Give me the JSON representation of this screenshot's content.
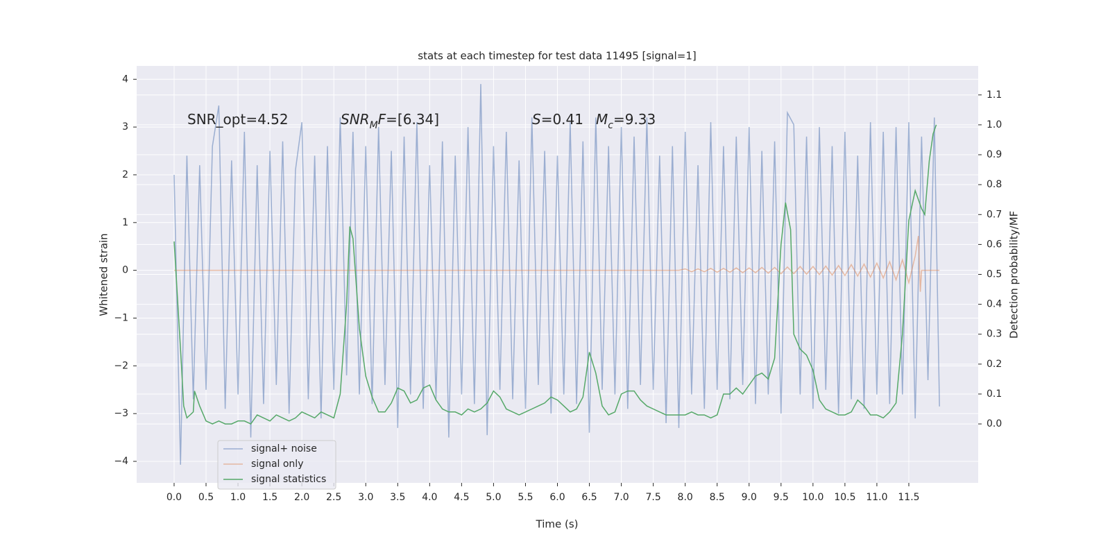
{
  "chart_data": {
    "type": "line",
    "title": "stats at each timestep for test data 11495 [signal=1]",
    "xlabel": "Time (s)",
    "ylabel": "Whitened strain",
    "y2label": "Detection probability/MF",
    "xlim": [
      -0.586,
      12.586
    ],
    "ylim": [
      -4.45,
      4.28
    ],
    "y2lim": [
      -0.197,
      1.197
    ],
    "xticks": [
      {
        "value": 0,
        "label": "0.0"
      },
      {
        "value": 0.5,
        "label": "0.5"
      },
      {
        "value": 1,
        "label": "1.0"
      },
      {
        "value": 1.5,
        "label": "1.5"
      },
      {
        "value": 2,
        "label": "2.0"
      },
      {
        "value": 2.5,
        "label": "2.5"
      },
      {
        "value": 3,
        "label": "3.0"
      },
      {
        "value": 3.5,
        "label": "3.5"
      },
      {
        "value": 4,
        "label": "4.0"
      },
      {
        "value": 4.5,
        "label": "4.5"
      },
      {
        "value": 5,
        "label": "5.0"
      },
      {
        "value": 5.5,
        "label": "5.5"
      },
      {
        "value": 6,
        "label": "6.0"
      },
      {
        "value": 6.5,
        "label": "6.5"
      },
      {
        "value": 7,
        "label": "7.0"
      },
      {
        "value": 7.5,
        "label": "7.5"
      },
      {
        "value": 8,
        "label": "8.0"
      },
      {
        "value": 8.5,
        "label": "8.5"
      },
      {
        "value": 9,
        "label": "9.0"
      },
      {
        "value": 9.5,
        "label": "9.5"
      },
      {
        "value": 10,
        "label": "10.0"
      },
      {
        "value": 10.5,
        "label": "10.5"
      },
      {
        "value": 11,
        "label": "11.0"
      },
      {
        "value": 11.5,
        "label": "11.5"
      }
    ],
    "yticks": [
      {
        "value": -4,
        "label": "−4"
      },
      {
        "value": -3,
        "label": "−3"
      },
      {
        "value": -2,
        "label": "−2"
      },
      {
        "value": -1,
        "label": "−1"
      },
      0,
      1,
      2,
      3,
      4
    ],
    "y2ticks": [
      {
        "value": 0,
        "label": "0.0"
      },
      {
        "value": 0.1,
        "label": "0.1"
      },
      {
        "value": 0.2,
        "label": "0.2"
      },
      {
        "value": 0.3,
        "label": "0.3"
      },
      {
        "value": 0.4,
        "label": "0.4"
      },
      {
        "value": 0.5,
        "label": "0.5"
      },
      {
        "value": 0.6,
        "label": "0.6"
      },
      {
        "value": 0.7,
        "label": "0.7"
      },
      {
        "value": 0.8,
        "label": "0.8"
      },
      {
        "value": 0.9,
        "label": "0.9"
      },
      {
        "value": 1,
        "label": "1.0"
      },
      {
        "value": 1.1,
        "label": "1.1"
      }
    ],
    "grid": true,
    "legend": "lower left",
    "annotations": [
      {
        "parts": [
          {
            "text": "SNR_opt=4.52"
          }
        ]
      },
      {
        "parts": [
          {
            "text": "SNR",
            "style": "italic"
          },
          {
            "text": "M",
            "style": "sub"
          },
          {
            "text": "F",
            "style": "italic"
          },
          {
            "text": "=[6.34]"
          }
        ]
      },
      {
        "parts": [
          {
            "text": "S",
            "style": "italic"
          },
          {
            "text": "=0.41"
          }
        ]
      },
      {
        "parts": [
          {
            "text": "M",
            "style": "italic"
          },
          {
            "text": "c",
            "style": "sub"
          },
          {
            "text": "=9.33"
          }
        ]
      }
    ],
    "series": [
      {
        "name": "signal+ noise",
        "color": "#4c72b0",
        "opacity": 0.5,
        "x": [
          0,
          0.1,
          0.2,
          0.3,
          0.4,
          0.5,
          0.6,
          0.7,
          0.8,
          0.9,
          1,
          1.1,
          1.2,
          1.3,
          1.4,
          1.5,
          1.6,
          1.7,
          1.8,
          1.9,
          2,
          2.1,
          2.2,
          2.3,
          2.4,
          2.5,
          2.6,
          2.7,
          2.8,
          2.9,
          3,
          3.1,
          3.2,
          3.3,
          3.4,
          3.5,
          3.6,
          3.7,
          3.8,
          3.9,
          4,
          4.1,
          4.2,
          4.3,
          4.4,
          4.5,
          4.6,
          4.7,
          4.8,
          4.9,
          5,
          5.1,
          5.2,
          5.3,
          5.4,
          5.5,
          5.6,
          5.7,
          5.8,
          5.9,
          6,
          6.1,
          6.2,
          6.3,
          6.4,
          6.5,
          6.6,
          6.7,
          6.8,
          6.9,
          7,
          7.1,
          7.2,
          7.3,
          7.4,
          7.5,
          7.6,
          7.7,
          7.8,
          7.9,
          8,
          8.1,
          8.2,
          8.3,
          8.4,
          8.5,
          8.6,
          8.7,
          8.8,
          8.9,
          9,
          9.1,
          9.2,
          9.3,
          9.4,
          9.5,
          9.6,
          9.7,
          9.8,
          9.9,
          10,
          10.1,
          10.2,
          10.3,
          10.4,
          10.5,
          10.6,
          10.7,
          10.8,
          10.9,
          11,
          11.1,
          11.2,
          11.3,
          11.4,
          11.5,
          11.6,
          11.7,
          11.8,
          11.9,
          11.98
        ],
        "values": [
          2.0,
          -4.07,
          2.4,
          -2.7,
          2.2,
          -2.5,
          2.6,
          3.45,
          -2.9,
          2.3,
          -2.6,
          2.9,
          -3.5,
          2.2,
          -2.8,
          2.5,
          -2.4,
          2.7,
          -3.0,
          2.1,
          3.1,
          -2.7,
          2.4,
          -3.1,
          2.6,
          -2.5,
          3.2,
          -2.2,
          2.9,
          -2.6,
          2.6,
          -2.8,
          3.0,
          -2.4,
          2.5,
          -3.3,
          2.8,
          -2.6,
          3.1,
          -2.9,
          2.2,
          -2.7,
          2.7,
          -3.5,
          2.4,
          -2.6,
          3.0,
          -2.8,
          3.9,
          -3.45,
          2.6,
          -2.5,
          2.9,
          -2.7,
          2.3,
          -2.9,
          3.2,
          -2.4,
          2.5,
          -3.0,
          2.4,
          -2.6,
          3.1,
          -2.8,
          2.7,
          -3.4,
          3.2,
          -2.5,
          2.6,
          -2.6,
          3.0,
          -2.9,
          2.8,
          -2.4,
          3.2,
          -2.5,
          2.4,
          -3.2,
          2.6,
          -3.3,
          2.9,
          -2.6,
          2.2,
          -2.9,
          3.1,
          -2.5,
          2.6,
          -2.7,
          2.8,
          -2.4,
          3.0,
          -2.8,
          2.5,
          -2.6,
          2.7,
          -3.0,
          3.3,
          3.05,
          -2.6,
          2.8,
          -2.9,
          3.0,
          -2.5,
          2.6,
          -3.0,
          2.9,
          -2.7,
          2.4,
          -2.9,
          3.1,
          -2.6,
          2.9,
          -2.8,
          3.0,
          -2.6,
          3.1,
          -3.1,
          2.8,
          -2.3,
          3.2,
          -2.85
        ]
      },
      {
        "name": "signal only",
        "color": "#dd8452",
        "opacity": 0.5,
        "x": [
          0,
          7.9,
          8,
          8.1,
          8.2,
          8.3,
          8.4,
          8.5,
          8.6,
          8.7,
          8.8,
          8.9,
          9,
          9.1,
          9.2,
          9.3,
          9.4,
          9.5,
          9.6,
          9.7,
          9.8,
          9.9,
          10,
          10.1,
          10.2,
          10.3,
          10.4,
          10.5,
          10.6,
          10.7,
          10.8,
          10.9,
          11,
          11.1,
          11.2,
          11.3,
          11.4,
          11.5,
          11.6,
          11.65,
          11.68,
          11.7,
          11.98
        ],
        "values": [
          0,
          0,
          0.03,
          -0.03,
          0.03,
          -0.03,
          0.04,
          -0.04,
          0.04,
          -0.04,
          0.05,
          -0.05,
          0.05,
          -0.05,
          0.06,
          -0.06,
          0.06,
          -0.07,
          0.07,
          -0.07,
          0.08,
          -0.08,
          0.08,
          -0.09,
          0.09,
          -0.1,
          0.1,
          -0.11,
          0.12,
          -0.12,
          0.13,
          -0.14,
          0.15,
          -0.16,
          0.18,
          -0.2,
          0.22,
          -0.26,
          0.3,
          0.72,
          -0.45,
          0,
          0
        ]
      },
      {
        "name": "signal statistics",
        "color": "#55a868",
        "opacity": 1,
        "axis": "y2",
        "x": [
          0,
          0.1,
          0.15,
          0.2,
          0.3,
          0.32,
          0.4,
          0.5,
          0.6,
          0.7,
          0.8,
          0.9,
          1,
          1.1,
          1.2,
          1.3,
          1.4,
          1.5,
          1.6,
          1.7,
          1.8,
          1.9,
          2,
          2.1,
          2.2,
          2.3,
          2.4,
          2.5,
          2.6,
          2.7,
          2.75,
          2.8,
          2.9,
          3,
          3.1,
          3.2,
          3.3,
          3.4,
          3.5,
          3.6,
          3.7,
          3.8,
          3.9,
          4,
          4.1,
          4.2,
          4.3,
          4.4,
          4.5,
          4.6,
          4.7,
          4.8,
          4.9,
          5,
          5.1,
          5.2,
          5.3,
          5.4,
          5.5,
          5.6,
          5.7,
          5.8,
          5.9,
          6,
          6.1,
          6.2,
          6.3,
          6.4,
          6.5,
          6.6,
          6.7,
          6.8,
          6.9,
          7,
          7.1,
          7.2,
          7.3,
          7.4,
          7.5,
          7.6,
          7.7,
          7.8,
          7.9,
          8,
          8.1,
          8.2,
          8.3,
          8.4,
          8.5,
          8.6,
          8.7,
          8.8,
          8.9,
          9,
          9.1,
          9.2,
          9.3,
          9.4,
          9.5,
          9.57,
          9.65,
          9.7,
          9.8,
          9.9,
          10,
          10.1,
          10.2,
          10.3,
          10.4,
          10.5,
          10.6,
          10.7,
          10.8,
          10.9,
          11,
          11.1,
          11.2,
          11.3,
          11.4,
          11.5,
          11.6,
          11.7,
          11.75,
          11.82,
          11.88,
          11.93
        ],
        "values": [
          0.61,
          0.25,
          0.06,
          0.02,
          0.04,
          0.11,
          0.06,
          0.01,
          0.0,
          0.01,
          0.0,
          0.0,
          0.01,
          0.01,
          0.0,
          0.03,
          0.02,
          0.01,
          0.03,
          0.02,
          0.01,
          0.02,
          0.04,
          0.03,
          0.02,
          0.04,
          0.03,
          0.02,
          0.1,
          0.4,
          0.66,
          0.62,
          0.32,
          0.16,
          0.09,
          0.04,
          0.04,
          0.07,
          0.12,
          0.11,
          0.07,
          0.08,
          0.12,
          0.13,
          0.08,
          0.05,
          0.04,
          0.04,
          0.03,
          0.05,
          0.04,
          0.05,
          0.07,
          0.11,
          0.09,
          0.05,
          0.04,
          0.03,
          0.04,
          0.05,
          0.06,
          0.07,
          0.09,
          0.08,
          0.06,
          0.04,
          0.05,
          0.09,
          0.24,
          0.17,
          0.06,
          0.03,
          0.04,
          0.1,
          0.11,
          0.11,
          0.08,
          0.06,
          0.05,
          0.04,
          0.03,
          0.03,
          0.03,
          0.03,
          0.04,
          0.03,
          0.03,
          0.02,
          0.03,
          0.1,
          0.1,
          0.12,
          0.1,
          0.13,
          0.16,
          0.17,
          0.15,
          0.22,
          0.6,
          0.74,
          0.65,
          0.3,
          0.25,
          0.23,
          0.18,
          0.08,
          0.05,
          0.04,
          0.03,
          0.03,
          0.04,
          0.08,
          0.06,
          0.03,
          0.03,
          0.02,
          0.04,
          0.07,
          0.3,
          0.68,
          0.78,
          0.72,
          0.7,
          0.88,
          0.97,
          1.0
        ]
      }
    ]
  }
}
